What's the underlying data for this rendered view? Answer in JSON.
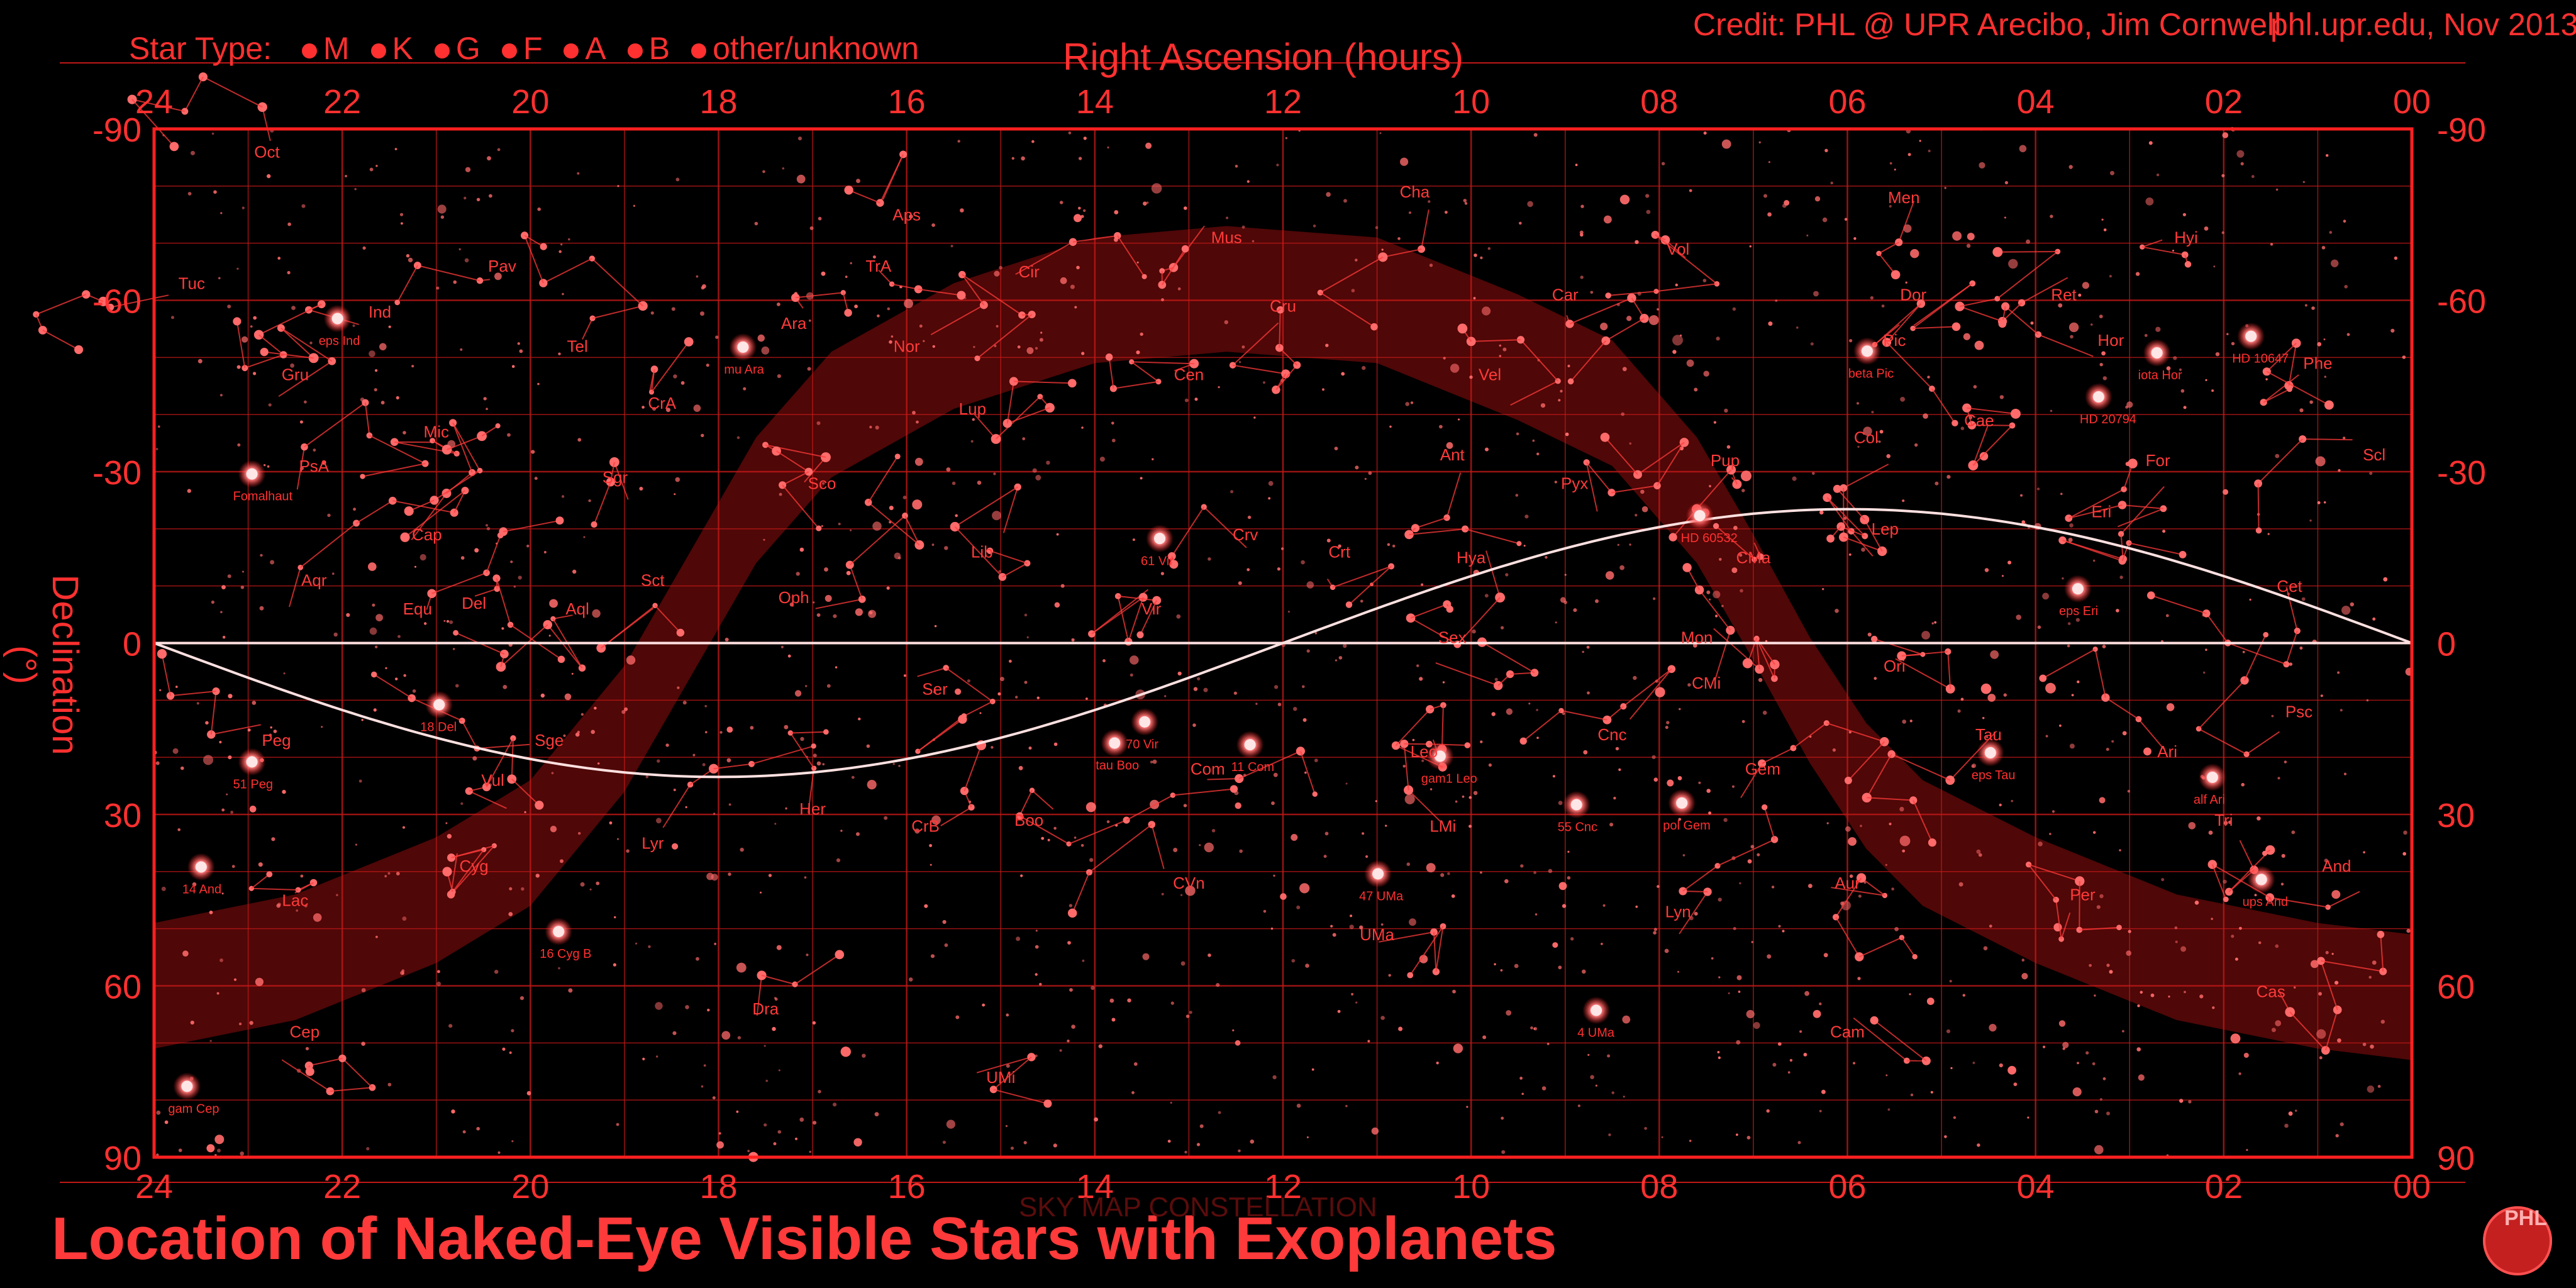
{
  "header": {
    "star_type_label": "Star Type:",
    "star_types": [
      "M",
      "K",
      "G",
      "F",
      "A",
      "B",
      "other/unknown"
    ],
    "credit": "Credit: PHL @ UPR Arecibo, Jim Cornwell",
    "site": "phl.upr.edu, Nov 2013"
  },
  "title": "Location of Naked-Eye Visible Stars with Exoplanets",
  "subtitle": "SKY MAP CONSTELLATION",
  "logo": "PHL",
  "colors": {
    "background": "#000000",
    "grid": "#c01818",
    "lines": "#ff3a3a",
    "stars": "#ff6a6a",
    "ecliptic": "#ffe0e0",
    "milky_way": "#6a0a0a"
  },
  "chart_data": {
    "type": "scatter",
    "xlabel": "Right Ascension (hours)",
    "ylabel": "Declination (°)",
    "xlim": [
      24,
      0
    ],
    "ylim": [
      -90,
      90
    ],
    "x_ticks": [
      "24",
      "22",
      "20",
      "18",
      "16",
      "14",
      "12",
      "10",
      "08",
      "06",
      "04",
      "02",
      "00"
    ],
    "y_ticks": [
      "-90",
      "-60",
      "-30",
      "0",
      "30",
      "60",
      "90"
    ],
    "grid": true,
    "projection": "mirrored equirectangular",
    "constellations": [
      {
        "name": "Oct",
        "ra": 22.8,
        "dec": -85
      },
      {
        "name": "Aps",
        "ra": 16.0,
        "dec": -74
      },
      {
        "name": "Cha",
        "ra": 10.6,
        "dec": -78
      },
      {
        "name": "Men",
        "ra": 5.4,
        "dec": -77
      },
      {
        "name": "Hyi",
        "ra": 2.4,
        "dec": -70
      },
      {
        "name": "Tuc",
        "ra": 23.6,
        "dec": -62
      },
      {
        "name": "Pav",
        "ra": 20.3,
        "dec": -65
      },
      {
        "name": "TrA",
        "ra": 16.3,
        "dec": -65
      },
      {
        "name": "Mus",
        "ra": 12.6,
        "dec": -70
      },
      {
        "name": "Cir",
        "ra": 14.7,
        "dec": -64
      },
      {
        "name": "Vol",
        "ra": 7.8,
        "dec": -68
      },
      {
        "name": "Dor",
        "ra": 5.3,
        "dec": -60
      },
      {
        "name": "Ret",
        "ra": 3.7,
        "dec": -60
      },
      {
        "name": "Ind",
        "ra": 21.6,
        "dec": -57
      },
      {
        "name": "Ara",
        "ra": 17.2,
        "dec": -55
      },
      {
        "name": "Nor",
        "ra": 16.0,
        "dec": -51
      },
      {
        "name": "Cru",
        "ra": 12.0,
        "dec": -58
      },
      {
        "name": "Car",
        "ra": 9.0,
        "dec": -60
      },
      {
        "name": "Pic",
        "ra": 5.5,
        "dec": -52
      },
      {
        "name": "Hor",
        "ra": 3.2,
        "dec": -52
      },
      {
        "name": "Phe",
        "ra": 1.0,
        "dec": -48
      },
      {
        "name": "Tel",
        "ra": 19.5,
        "dec": -51
      },
      {
        "name": "Gru",
        "ra": 22.5,
        "dec": -46
      },
      {
        "name": "Cen",
        "ra": 13.0,
        "dec": -46
      },
      {
        "name": "Vel",
        "ra": 9.8,
        "dec": -46
      },
      {
        "name": "Cae",
        "ra": 4.6,
        "dec": -38
      },
      {
        "name": "CrA",
        "ra": 18.6,
        "dec": -41
      },
      {
        "name": "Mic",
        "ra": 21.0,
        "dec": -36
      },
      {
        "name": "Lup",
        "ra": 15.3,
        "dec": -40
      },
      {
        "name": "Ant",
        "ra": 10.2,
        "dec": -32
      },
      {
        "name": "Pyx",
        "ra": 8.9,
        "dec": -27
      },
      {
        "name": "Pup",
        "ra": 7.3,
        "dec": -31
      },
      {
        "name": "Col",
        "ra": 5.8,
        "dec": -35
      },
      {
        "name": "Scl",
        "ra": 0.4,
        "dec": -32
      },
      {
        "name": "PsA",
        "ra": 22.3,
        "dec": -30
      },
      {
        "name": "Sgr",
        "ra": 19.1,
        "dec": -28
      },
      {
        "name": "Sco",
        "ra": 16.9,
        "dec": -27
      },
      {
        "name": "For",
        "ra": 2.7,
        "dec": -31
      },
      {
        "name": "Cap",
        "ra": 21.1,
        "dec": -18
      },
      {
        "name": "Lib",
        "ra": 15.2,
        "dec": -15
      },
      {
        "name": "Crv",
        "ra": 12.4,
        "dec": -18
      },
      {
        "name": "Crt",
        "ra": 11.4,
        "dec": -15
      },
      {
        "name": "Hya",
        "ra": 10.0,
        "dec": -14
      },
      {
        "name": "CMa",
        "ra": 7.0,
        "dec": -14
      },
      {
        "name": "Lep",
        "ra": 5.6,
        "dec": -19
      },
      {
        "name": "Eri",
        "ra": 3.3,
        "dec": -22
      },
      {
        "name": "Cet",
        "ra": 1.3,
        "dec": -9
      },
      {
        "name": "Aqr",
        "ra": 22.3,
        "dec": -10
      },
      {
        "name": "Sct",
        "ra": 18.7,
        "dec": -10
      },
      {
        "name": "Oph",
        "ra": 17.2,
        "dec": -7
      },
      {
        "name": "Sex",
        "ra": 10.2,
        "dec": 0
      },
      {
        "name": "Mon",
        "ra": 7.6,
        "dec": 0
      },
      {
        "name": "Ori",
        "ra": 5.5,
        "dec": 5
      },
      {
        "name": "Psc",
        "ra": 1.2,
        "dec": 13
      },
      {
        "name": "Equ",
        "ra": 21.2,
        "dec": -5
      },
      {
        "name": "Del",
        "ra": 20.6,
        "dec": -6
      },
      {
        "name": "Aql",
        "ra": 19.5,
        "dec": -5
      },
      {
        "name": "Ser",
        "ra": 15.7,
        "dec": 9
      },
      {
        "name": "Vir",
        "ra": 13.4,
        "dec": -5
      },
      {
        "name": "CMi",
        "ra": 7.5,
        "dec": 8
      },
      {
        "name": "Peg",
        "ra": 22.7,
        "dec": 18
      },
      {
        "name": "Sge",
        "ra": 19.8,
        "dec": 18
      },
      {
        "name": "Leo",
        "ra": 10.5,
        "dec": 20
      },
      {
        "name": "Cnc",
        "ra": 8.5,
        "dec": 17
      },
      {
        "name": "Tau",
        "ra": 4.5,
        "dec": 17
      },
      {
        "name": "Ari",
        "ra": 2.6,
        "dec": 20
      },
      {
        "name": "Vul",
        "ra": 20.4,
        "dec": 25
      },
      {
        "name": "Com",
        "ra": 12.8,
        "dec": 23
      },
      {
        "name": "Gem",
        "ra": 6.9,
        "dec": 23
      },
      {
        "name": "Her",
        "ra": 17.0,
        "dec": 30
      },
      {
        "name": "CrB",
        "ra": 15.8,
        "dec": 33
      },
      {
        "name": "Boo",
        "ra": 14.7,
        "dec": 32
      },
      {
        "name": "LMi",
        "ra": 10.3,
        "dec": 33
      },
      {
        "name": "Tri",
        "ra": 2.0,
        "dec": 32
      },
      {
        "name": "Cyg",
        "ra": 20.6,
        "dec": 40
      },
      {
        "name": "Lyr",
        "ra": 18.7,
        "dec": 36
      },
      {
        "name": "CVn",
        "ra": 13.0,
        "dec": 43
      },
      {
        "name": "And",
        "ra": 0.8,
        "dec": 40
      },
      {
        "name": "Lac",
        "ra": 22.5,
        "dec": 46
      },
      {
        "name": "Aur",
        "ra": 6.0,
        "dec": 43
      },
      {
        "name": "Per",
        "ra": 3.5,
        "dec": 45
      },
      {
        "name": "Lyn",
        "ra": 7.8,
        "dec": 48
      },
      {
        "name": "UMa",
        "ra": 11.0,
        "dec": 52
      },
      {
        "name": "Dra",
        "ra": 17.5,
        "dec": 65
      },
      {
        "name": "Cep",
        "ra": 22.4,
        "dec": 69
      },
      {
        "name": "Cas",
        "ra": 1.5,
        "dec": 62
      },
      {
        "name": "Cam",
        "ra": 6.0,
        "dec": 69
      },
      {
        "name": "UMi",
        "ra": 15.0,
        "dec": 77
      }
    ],
    "exoplanet_hosts": [
      {
        "name": "ups And",
        "ra": 1.6,
        "dec": 41.4
      },
      {
        "name": "14 And",
        "ra": 23.5,
        "dec": 39.2
      },
      {
        "name": "51 Peg",
        "ra": 22.96,
        "dec": 20.8
      },
      {
        "name": "gam Cep",
        "ra": 23.65,
        "dec": 77.6
      },
      {
        "name": "16 Cyg B",
        "ra": 19.7,
        "dec": 50.5
      },
      {
        "name": "tau Boo",
        "ra": 13.79,
        "dec": 17.5
      },
      {
        "name": "70 Vir",
        "ra": 13.47,
        "dec": 13.8
      },
      {
        "name": "47 UMa",
        "ra": 10.99,
        "dec": 40.4
      },
      {
        "name": "55 Cnc",
        "ra": 8.88,
        "dec": 28.3
      },
      {
        "name": "pol Gem",
        "ra": 7.76,
        "dec": 28.0
      },
      {
        "name": "eps Tau",
        "ra": 4.48,
        "dec": 19.2
      },
      {
        "name": "alf Ari",
        "ra": 2.12,
        "dec": 23.5
      },
      {
        "name": "eps Eri",
        "ra": 3.55,
        "dec": -9.5
      },
      {
        "name": "iota Hor",
        "ra": 2.71,
        "dec": -50.8
      },
      {
        "name": "HD 10647",
        "ra": 1.71,
        "dec": -53.7
      },
      {
        "name": "mu Ara",
        "ra": 17.74,
        "dec": -51.8
      },
      {
        "name": "eps Ind",
        "ra": 22.05,
        "dec": -56.8
      },
      {
        "name": "HD 20794",
        "ra": 3.33,
        "dec": -43.1
      },
      {
        "name": "61 Vir",
        "ra": 13.31,
        "dec": -18.3
      },
      {
        "name": "11 Com",
        "ra": 12.35,
        "dec": 17.8
      },
      {
        "name": "18 Del",
        "ra": 20.97,
        "dec": 10.8
      },
      {
        "name": "4 UMa",
        "ra": 8.67,
        "dec": 64.3
      },
      {
        "name": "HD 60532",
        "ra": 7.57,
        "dec": -22.3
      },
      {
        "name": "beta Pic",
        "ra": 5.79,
        "dec": -51.1
      },
      {
        "name": "Fomalhaut",
        "ra": 22.96,
        "dec": -29.6
      },
      {
        "name": "gam1 Leo",
        "ra": 10.33,
        "dec": 19.8
      }
    ],
    "ecliptic": {
      "max_dec": 23.44,
      "min_dec": -23.44
    }
  }
}
